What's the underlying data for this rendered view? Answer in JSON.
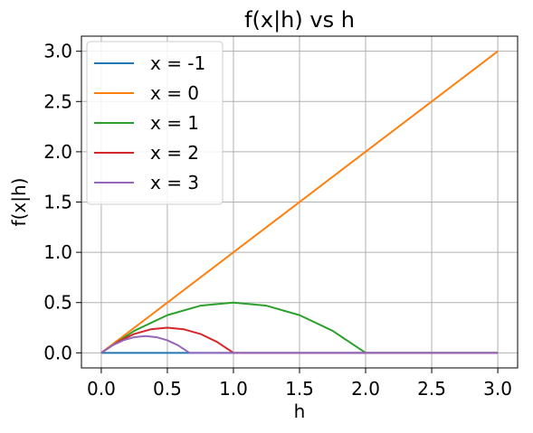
{
  "chart_data": {
    "type": "line",
    "title": "f(x|h) vs h",
    "xlabel": "h",
    "ylabel": "f(x|h)",
    "xlim": [
      -0.15,
      3.15
    ],
    "ylim": [
      -0.15,
      3.15
    ],
    "xticks": [
      "0.0",
      "0.5",
      "1.0",
      "1.5",
      "2.0",
      "2.5",
      "3.0"
    ],
    "yticks": [
      "0.0",
      "0.5",
      "1.0",
      "1.5",
      "2.0",
      "2.5",
      "3.0"
    ],
    "grid": true,
    "legend_position": "top-left",
    "x": [
      0,
      0.25,
      0.5,
      0.75,
      1.0,
      1.25,
      1.5,
      1.75,
      2.0,
      2.25,
      2.5,
      2.75,
      3.0
    ],
    "series": [
      {
        "name": "x = -1",
        "color": "#1f77b4",
        "points": [
          [
            0,
            0
          ],
          [
            3,
            0
          ]
        ]
      },
      {
        "name": "x = 0",
        "color": "#ff7f0e",
        "points": [
          [
            0,
            0
          ],
          [
            3,
            3
          ]
        ]
      },
      {
        "name": "x = 1",
        "color": "#2ca02c",
        "points": [
          [
            0,
            0
          ],
          [
            0.25,
            0.219
          ],
          [
            0.5,
            0.375
          ],
          [
            0.75,
            0.469
          ],
          [
            1.0,
            0.5
          ],
          [
            1.25,
            0.469
          ],
          [
            1.5,
            0.375
          ],
          [
            1.75,
            0.219
          ],
          [
            2.0,
            0
          ],
          [
            3,
            0
          ]
        ]
      },
      {
        "name": "x = 2",
        "color": "#d62728",
        "points": [
          [
            0,
            0
          ],
          [
            0.125,
            0.109
          ],
          [
            0.25,
            0.188
          ],
          [
            0.375,
            0.234
          ],
          [
            0.5,
            0.25
          ],
          [
            0.625,
            0.234
          ],
          [
            0.75,
            0.188
          ],
          [
            0.875,
            0.109
          ],
          [
            1.0,
            0
          ],
          [
            3,
            0
          ]
        ]
      },
      {
        "name": "x = 3",
        "color": "#9467bd",
        "points": [
          [
            0,
            0
          ],
          [
            0.083,
            0.073
          ],
          [
            0.167,
            0.125
          ],
          [
            0.25,
            0.156
          ],
          [
            0.333,
            0.167
          ],
          [
            0.417,
            0.156
          ],
          [
            0.5,
            0.125
          ],
          [
            0.583,
            0.073
          ],
          [
            0.667,
            0
          ],
          [
            3,
            0
          ]
        ]
      }
    ]
  }
}
